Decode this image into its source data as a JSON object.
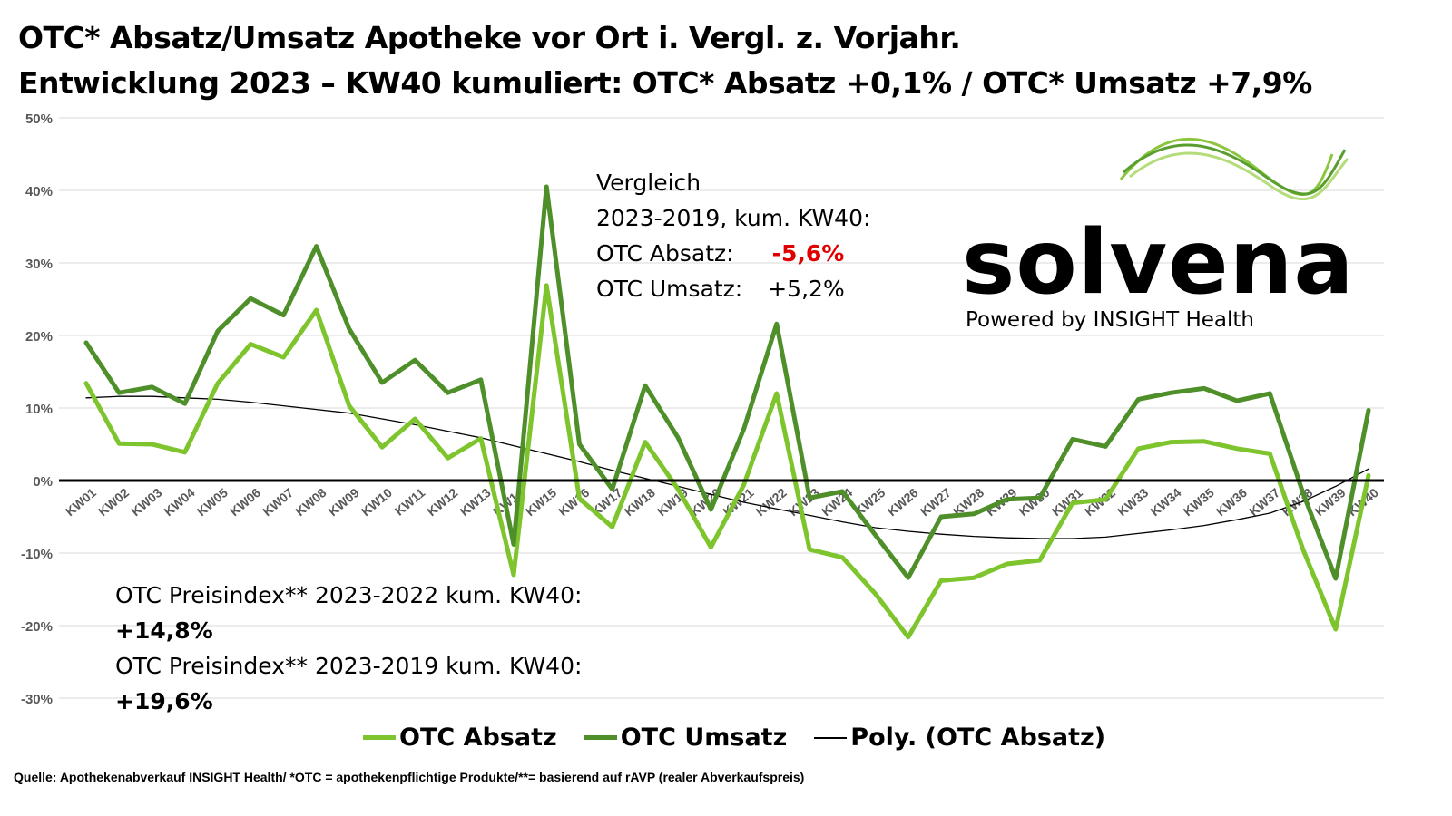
{
  "title_line1": "OTC* Absatz/Umsatz Apotheke vor Ort i. Vergl. z. Vorjahr.",
  "title_line2": "Entwicklung 2023 – KW40 kumuliert: OTC* Absatz +0,1% / OTC* Umsatz +7,9%",
  "comparison": {
    "heading": "Vergleich",
    "period": "2023-2019, kum. KW40:",
    "absatz_label": "OTC Absatz:",
    "absatz_value": "-5,6%",
    "umsatz_label": "OTC Umsatz:",
    "umsatz_value": "+5,2%"
  },
  "price_index": {
    "label1": "OTC Preisindex** 2023-2022 kum. KW40:",
    "value1": "+14,8%",
    "label2": "OTC Preisindex** 2023-2019 kum. KW40:",
    "value2": "+19,6%"
  },
  "logo": {
    "name": "solvena",
    "tagline": "Powered by INSIGHT Health"
  },
  "source": "Quelle: Apothekenabverkauf INSIGHT Health/ *OTC = apothekenpflichtige Produkte/**= basierend auf rAVP (realer Abverkaufspreis)",
  "colors": {
    "absatz": "#7dc42d",
    "umsatz": "#4e8f2a",
    "poly": "#000000",
    "grid": "#d9d9d9"
  },
  "chart_data": {
    "type": "line",
    "categories": [
      "KW01",
      "KW02",
      "KW03",
      "KW04",
      "KW05",
      "KW06",
      "KW07",
      "KW08",
      "KW09",
      "KW10",
      "KW11",
      "KW12",
      "KW13",
      "KW14",
      "KW15",
      "KW16",
      "KW17",
      "KW18",
      "KW19",
      "KW20",
      "KW21",
      "KW22",
      "KW23",
      "KW24",
      "KW25",
      "KW26",
      "KW27",
      "KW28",
      "KW29",
      "KW30",
      "KW31",
      "KW32",
      "KW33",
      "KW34",
      "KW35",
      "KW36",
      "KW37",
      "KW38",
      "KW39",
      "KW40"
    ],
    "yticks": [
      "-30%",
      "-20%",
      "-10%",
      "0%",
      "10%",
      "20%",
      "30%",
      "40%",
      "50%"
    ],
    "ylim": [
      -30,
      50
    ],
    "grid": true,
    "legend_position": "bottom",
    "series": [
      {
        "name": "OTC Absatz",
        "values": [
          13.4,
          5.1,
          5.0,
          3.9,
          13.4,
          18.8,
          17.0,
          23.5,
          10.3,
          4.6,
          8.5,
          3.1,
          5.8,
          -13.0,
          26.9,
          -2.5,
          -6.4,
          5.3,
          -1.2,
          -9.2,
          -0.6,
          12.0,
          -9.5,
          -10.6,
          -15.6,
          -21.6,
          -13.8,
          -13.4,
          -11.5,
          -11.0,
          -3.1,
          -2.6,
          4.4,
          5.3,
          5.4,
          4.4,
          3.7,
          -9.4,
          -20.5,
          0.7
        ]
      },
      {
        "name": "OTC Umsatz",
        "values": [
          19.0,
          12.1,
          12.9,
          10.6,
          20.6,
          25.1,
          22.8,
          32.3,
          20.9,
          13.5,
          16.6,
          12.1,
          13.9,
          -8.8,
          40.5,
          5.0,
          -1.2,
          13.1,
          5.9,
          -4.0,
          7.1,
          21.6,
          -2.4,
          -1.5,
          -7.5,
          -13.4,
          -5.0,
          -4.6,
          -2.6,
          -2.4,
          5.7,
          4.7,
          11.2,
          12.1,
          12.7,
          11.0,
          12.0,
          -1.6,
          -13.5,
          9.7
        ]
      },
      {
        "name": "Poly. (OTC Absatz)",
        "values": [
          11.4,
          11.6,
          11.6,
          11.4,
          11.2,
          10.8,
          10.3,
          9.8,
          9.3,
          8.5,
          7.7,
          6.8,
          5.9,
          4.8,
          3.7,
          2.6,
          1.4,
          0.3,
          -0.8,
          -1.9,
          -3.0,
          -3.9,
          -4.8,
          -5.7,
          -6.5,
          -7.0,
          -7.4,
          -7.7,
          -7.9,
          -8.0,
          -8.0,
          -7.8,
          -7.3,
          -6.8,
          -6.2,
          -5.4,
          -4.5,
          -2.9,
          -0.8,
          1.6
        ]
      }
    ]
  }
}
